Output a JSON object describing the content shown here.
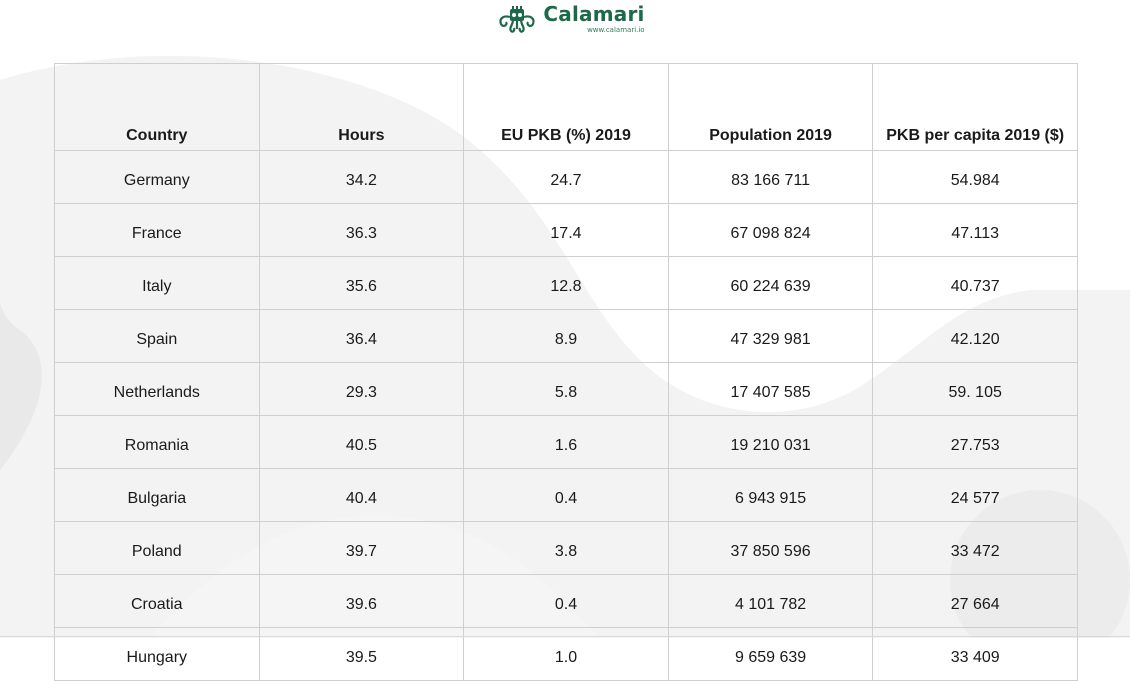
{
  "brand": {
    "name": "Calamari",
    "url": "www.calamari.io",
    "color": "#1c6a4a"
  },
  "table": {
    "headers": [
      "Country",
      "Hours",
      "EU PKB (%) 2019",
      "Population 2019",
      "PKB per capita 2019 ($)"
    ],
    "rows": [
      [
        "Germany",
        "34.2",
        "24.7",
        "83 166 711",
        "54.984"
      ],
      [
        "France",
        "36.3",
        "17.4",
        "67 098 824",
        "47.113"
      ],
      [
        "Italy",
        "35.6",
        "12.8",
        "60 224 639",
        "40.737"
      ],
      [
        "Spain",
        "36.4",
        "8.9",
        "47 329 981",
        "42.120"
      ],
      [
        "Netherlands",
        "29.3",
        "5.8",
        "17 407 585",
        "59. 105"
      ],
      [
        "Romania",
        "40.5",
        "1.6",
        "19 210 031",
        "27.753"
      ],
      [
        "Bulgaria",
        "40.4",
        "0.4",
        "6 943 915",
        "24 577"
      ],
      [
        "Poland",
        "39.7",
        "3.8",
        "37 850 596",
        "33 472"
      ],
      [
        "Croatia",
        "39.6",
        "0.4",
        "4 101 782",
        "27 664"
      ],
      [
        "Hungary",
        "39.5",
        "1.0",
        "9 659 639",
        "33 409"
      ]
    ]
  },
  "icons": {
    "logo": "octopus-logo-icon"
  }
}
